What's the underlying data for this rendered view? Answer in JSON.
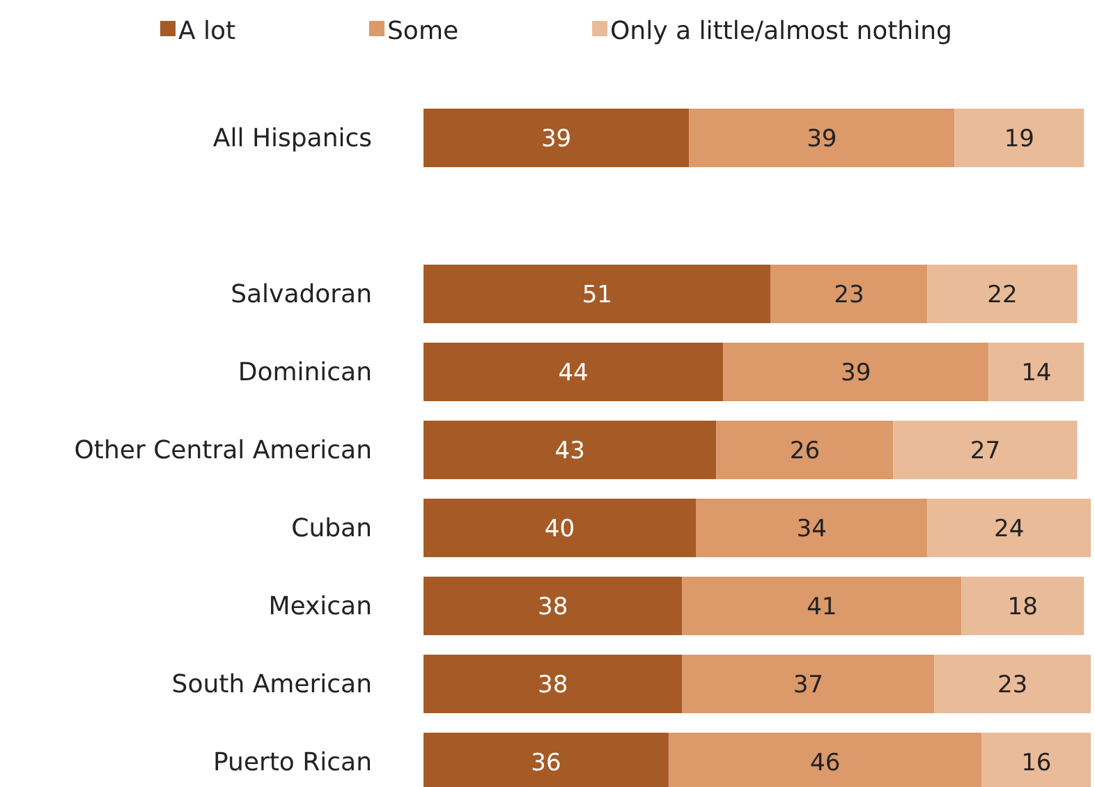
{
  "chart_data": {
    "type": "bar",
    "orientation": "horizontal",
    "stacked": true,
    "data_labels": true,
    "legend": "top",
    "categories": [
      "All Hispanics",
      null,
      "Salvadoran",
      "Dominican",
      "Other Central American",
      "Cuban",
      "Mexican",
      "South American",
      "Puerto Rican"
    ],
    "series": [
      {
        "name": "A lot",
        "color": "#a65a25",
        "values": [
          39,
          null,
          51,
          44,
          43,
          40,
          38,
          38,
          36
        ]
      },
      {
        "name": "Some",
        "color": "#dc996a",
        "values": [
          39,
          null,
          23,
          39,
          26,
          34,
          41,
          37,
          46
        ]
      },
      {
        "name": "Only a little/almost nothing",
        "color": "#e9bb98",
        "values": [
          19,
          null,
          22,
          14,
          27,
          24,
          18,
          23,
          16
        ]
      }
    ]
  }
}
